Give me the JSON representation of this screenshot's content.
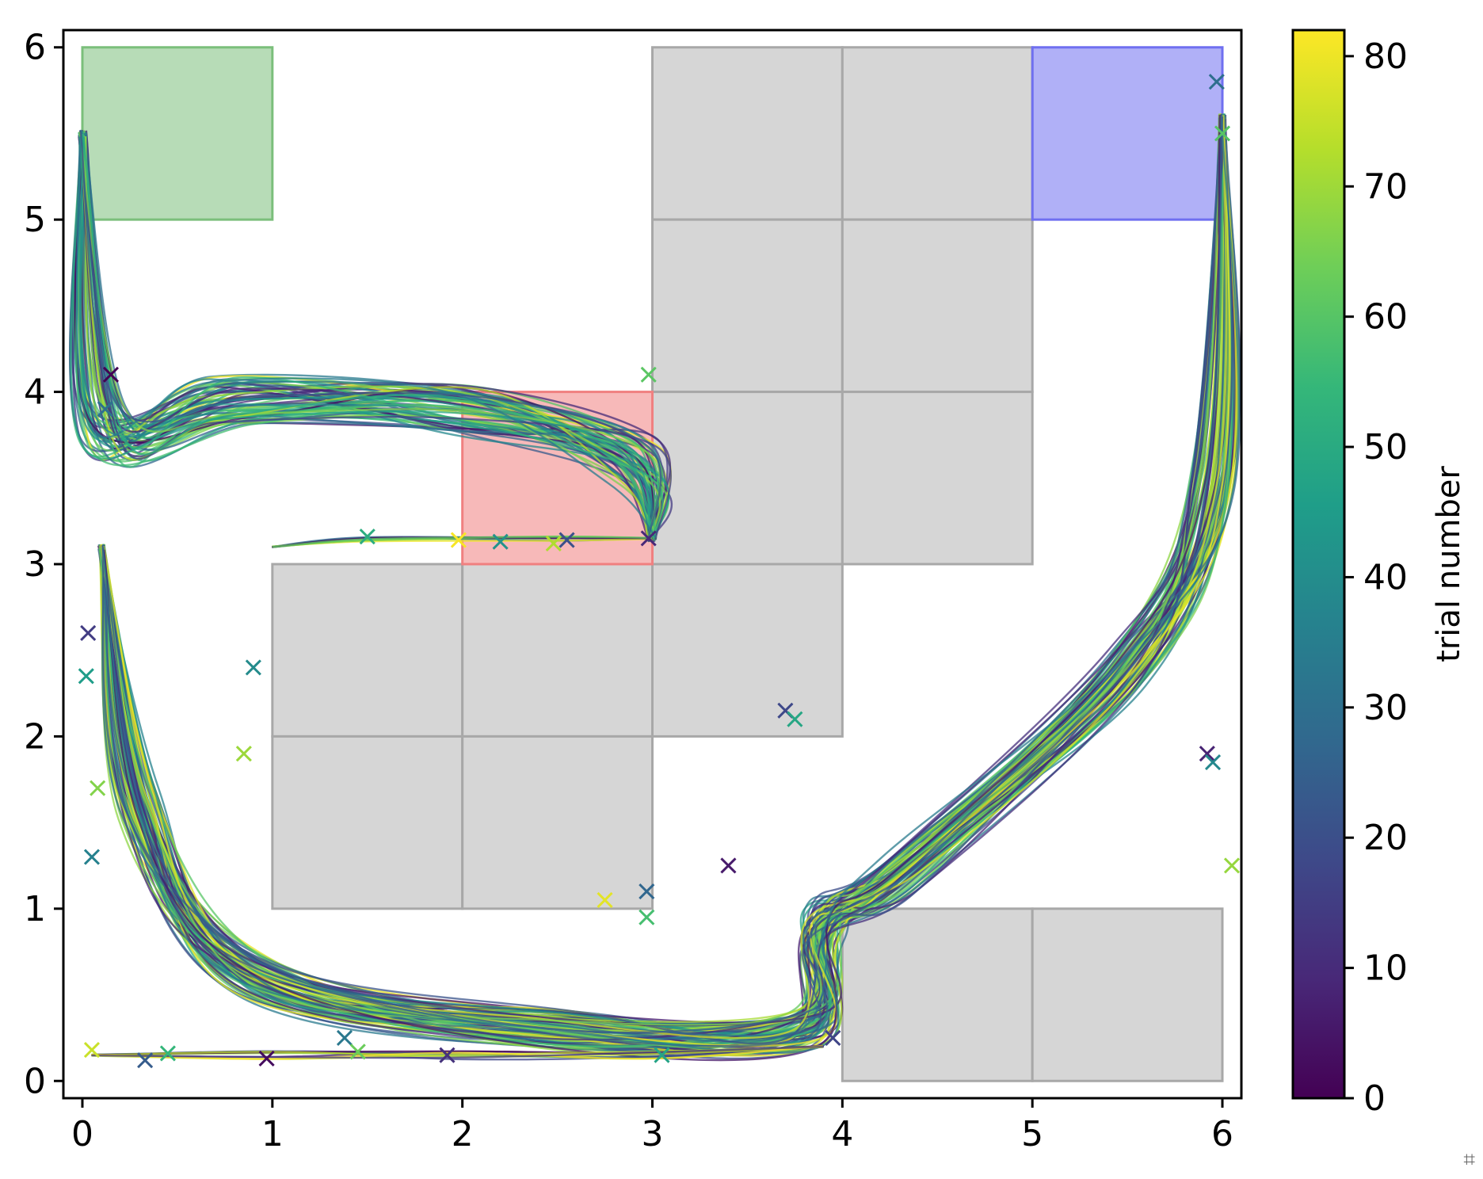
{
  "chart_data": {
    "type": "line",
    "title": "",
    "xlabel": "",
    "ylabel": "",
    "xlim": [
      -0.1,
      6.1
    ],
    "ylim": [
      -0.1,
      6.1
    ],
    "xticks": [
      "0",
      "1",
      "2",
      "3",
      "4",
      "5",
      "6"
    ],
    "yticks": [
      "0",
      "1",
      "2",
      "3",
      "4",
      "5",
      "6"
    ],
    "grid": false,
    "regions": [
      {
        "kind": "start",
        "color": "#7bbf7b",
        "x": [
          0,
          1
        ],
        "y": [
          5,
          6
        ]
      },
      {
        "kind": "goal",
        "color": "#6f6ff0",
        "x": [
          5,
          6
        ],
        "y": [
          5,
          6
        ]
      },
      {
        "kind": "hazard",
        "color": "#f08080",
        "x": [
          2,
          3
        ],
        "y": [
          3,
          4
        ]
      }
    ],
    "obstacle_cells": [
      [
        3,
        5
      ],
      [
        4,
        5
      ],
      [
        3,
        4
      ],
      [
        4,
        4
      ],
      [
        3,
        3
      ],
      [
        4,
        3
      ],
      [
        1,
        2
      ],
      [
        2,
        2
      ],
      [
        3,
        2
      ],
      [
        1,
        1
      ],
      [
        2,
        1
      ],
      [
        4,
        0
      ],
      [
        5,
        0
      ]
    ],
    "obstacle_color": "#d6d6d6",
    "paths": [
      {
        "route": "upper-hazard",
        "points": [
          [
            0,
            5.5
          ],
          [
            0.1,
            3.8
          ],
          [
            0.8,
            3.95
          ],
          [
            2,
            3.9
          ],
          [
            2.9,
            3.6
          ],
          [
            3,
            3.15
          ]
        ]
      },
      {
        "route": "lower",
        "points": [
          [
            0.1,
            3.1
          ],
          [
            0.3,
            1.6
          ],
          [
            0.9,
            0.6
          ],
          [
            2.5,
            0.3
          ],
          [
            3.8,
            0.3
          ],
          [
            3.9,
            0.9
          ],
          [
            4.3,
            1.2
          ],
          [
            5.5,
            2.4
          ],
          [
            5.95,
            3.5
          ],
          [
            6,
            5.6
          ]
        ]
      },
      {
        "route": "direct",
        "points": [
          [
            1,
            3.1
          ],
          [
            1.5,
            3.15
          ],
          [
            2.5,
            3.15
          ],
          [
            3,
            3.15
          ]
        ]
      },
      {
        "route": "bottom",
        "points": [
          [
            0.05,
            0.15
          ],
          [
            1,
            0.15
          ],
          [
            2,
            0.15
          ],
          [
            3,
            0.15
          ],
          [
            3.9,
            0.2
          ]
        ]
      }
    ],
    "crossings": [
      [
        0.15,
        4.1
      ],
      [
        0.12,
        3.9
      ],
      [
        2.98,
        4.1
      ],
      [
        2.98,
        3.15
      ],
      [
        0.9,
        2.4
      ],
      [
        0.85,
        1.9
      ],
      [
        3.7,
        2.15
      ],
      [
        3.75,
        2.1
      ],
      [
        2.75,
        1.05
      ],
      [
        2.97,
        1.1
      ],
      [
        2.97,
        0.95
      ],
      [
        3.4,
        1.25
      ],
      [
        0.05,
        1.3
      ],
      [
        0.08,
        1.7
      ],
      [
        0.03,
        2.6
      ],
      [
        0.02,
        2.35
      ],
      [
        0.05,
        0.18
      ],
      [
        0.33,
        0.12
      ],
      [
        0.45,
        0.16
      ],
      [
        0.97,
        0.13
      ],
      [
        1.38,
        0.25
      ],
      [
        1.45,
        0.17
      ],
      [
        1.92,
        0.15
      ],
      [
        2.2,
        3.13
      ],
      [
        2.48,
        3.12
      ],
      [
        2.55,
        3.14
      ],
      [
        1.5,
        3.16
      ],
      [
        1.98,
        3.14
      ],
      [
        5.97,
        5.8
      ],
      [
        6.0,
        5.5
      ],
      [
        5.92,
        1.9
      ],
      [
        5.95,
        1.85
      ],
      [
        6.05,
        1.25
      ],
      [
        3.95,
        0.25
      ],
      [
        3.05,
        0.15
      ]
    ],
    "colorbar": {
      "label": "trial number",
      "min": 0,
      "max": 82,
      "ticks": [
        "0",
        "10",
        "20",
        "30",
        "40",
        "50",
        "60",
        "70",
        "80"
      ],
      "colormap": "viridis",
      "stops": [
        "#440154",
        "#482878",
        "#3e4989",
        "#31688e",
        "#26828e",
        "#1f9e89",
        "#35b779",
        "#6ece58",
        "#b5de2b",
        "#fde725"
      ]
    }
  }
}
